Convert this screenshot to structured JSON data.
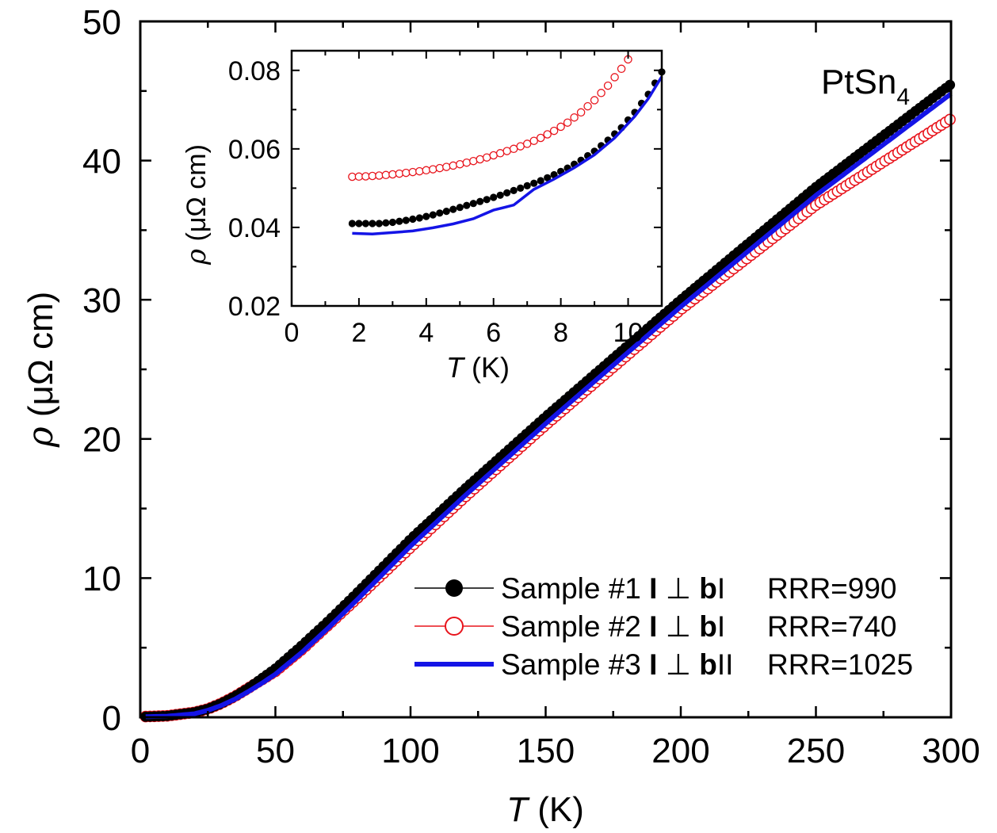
{
  "chart_data": [
    {
      "id": "main",
      "type": "line",
      "title": "",
      "annotation": {
        "base": "PtSn",
        "sub": "4"
      },
      "xlabel": {
        "symbol": "T",
        "unit": " (K)"
      },
      "ylabel": {
        "symbol": "ρ",
        "unit": " (μΩ cm)"
      },
      "xlim": [
        0,
        300
      ],
      "ylim": [
        0,
        50
      ],
      "xticks": [
        0,
        50,
        100,
        150,
        200,
        250,
        300
      ],
      "yticks": [
        0,
        10,
        20,
        30,
        40,
        50
      ],
      "xtick_labels": [
        "0",
        "50",
        "100",
        "150",
        "200",
        "250",
        "300"
      ],
      "ytick_labels": [
        "0",
        "10",
        "20",
        "30",
        "40",
        "50"
      ],
      "grid": false,
      "legend_position": "bottom-right",
      "series": [
        {
          "name": "Sample #1",
          "orientation": {
            "current": "I",
            "perp": "⊥",
            "axis": "b",
            "suffix": "I"
          },
          "rrr": "RRR=990",
          "marker": "filled-circle",
          "color": "#000000",
          "x": [
            2,
            10,
            20,
            25,
            30,
            35,
            40,
            45,
            50,
            60,
            70,
            80,
            100,
            120,
            150,
            200,
            250,
            300
          ],
          "y": [
            0.04,
            0.1,
            0.35,
            0.6,
            1.0,
            1.5,
            2.1,
            2.8,
            3.5,
            5.2,
            7.0,
            8.9,
            12.8,
            16.4,
            21.6,
            30.0,
            38.1,
            45.5
          ]
        },
        {
          "name": "Sample #2",
          "orientation": {
            "current": "I",
            "perp": "⊥",
            "axis": "b",
            "suffix": "I"
          },
          "rrr": "RRR=740",
          "marker": "open-circle",
          "color": "#e8141c",
          "x": [
            2,
            10,
            20,
            25,
            30,
            35,
            40,
            45,
            50,
            60,
            70,
            80,
            100,
            120,
            150,
            200,
            250,
            300
          ],
          "y": [
            0.05,
            0.1,
            0.35,
            0.6,
            1.0,
            1.5,
            2.1,
            2.7,
            3.3,
            4.9,
            6.7,
            8.5,
            12.2,
            15.8,
            21.0,
            29.3,
            36.8,
            43.0
          ]
        },
        {
          "name": "Sample #3",
          "orientation": {
            "current": "I",
            "perp": "⊥",
            "axis": "b",
            "suffix": "II"
          },
          "rrr": "RRR=1025",
          "marker": "line",
          "color": "#1414e6",
          "x": [
            2,
            10,
            20,
            25,
            30,
            35,
            40,
            45,
            50,
            60,
            70,
            80,
            100,
            120,
            150,
            200,
            250,
            300
          ],
          "y": [
            0.04,
            0.08,
            0.25,
            0.5,
            0.85,
            1.3,
            1.85,
            2.45,
            3.1,
            4.7,
            6.5,
            8.4,
            12.3,
            15.9,
            21.1,
            29.5,
            37.5,
            44.8
          ]
        }
      ]
    },
    {
      "id": "inset",
      "type": "line",
      "title": "",
      "xlabel": {
        "symbol": "T",
        "unit": " (K)"
      },
      "ylabel": {
        "symbol": "ρ",
        "unit": " (μΩ cm)"
      },
      "xlim": [
        0,
        11
      ],
      "ylim": [
        0.02,
        0.085
      ],
      "xticks": [
        0,
        2,
        4,
        6,
        8,
        10
      ],
      "yticks": [
        0.02,
        0.04,
        0.06,
        0.08
      ],
      "xtick_labels": [
        "0",
        "2",
        "4",
        "6",
        "8",
        "10"
      ],
      "ytick_labels": [
        "0.02",
        "0.04",
        "0.06",
        "0.08"
      ],
      "grid": false,
      "series": [
        {
          "name": "Sample #1",
          "marker": "filled-circle",
          "color": "#000000",
          "x": [
            1.8,
            2.2,
            2.6,
            3.0,
            3.4,
            3.8,
            4.2,
            4.6,
            5.0,
            5.4,
            5.8,
            6.2,
            6.6,
            7.0,
            7.4,
            7.8,
            8.2,
            8.6,
            9.0,
            9.4,
            9.8,
            10.2,
            10.6,
            11.0
          ],
          "y": [
            0.041,
            0.041,
            0.041,
            0.0413,
            0.0418,
            0.0424,
            0.0432,
            0.0441,
            0.0451,
            0.0461,
            0.0471,
            0.0482,
            0.0494,
            0.0506,
            0.0519,
            0.0534,
            0.0551,
            0.0571,
            0.0594,
            0.0622,
            0.0654,
            0.0693,
            0.0739,
            0.0796
          ]
        },
        {
          "name": "Sample #2",
          "marker": "open-circle",
          "color": "#e8141c",
          "x": [
            1.8,
            2.2,
            2.6,
            3.0,
            3.4,
            3.8,
            4.2,
            4.6,
            5.0,
            5.4,
            5.8,
            6.2,
            6.6,
            7.0,
            7.4,
            7.8,
            8.2,
            8.6,
            9.0,
            9.4,
            9.8,
            10.2
          ],
          "y": [
            0.0529,
            0.053,
            0.0532,
            0.0535,
            0.0539,
            0.0543,
            0.0548,
            0.0554,
            0.0561,
            0.0569,
            0.0578,
            0.0589,
            0.06,
            0.0613,
            0.0628,
            0.0646,
            0.0667,
            0.0693,
            0.0724,
            0.0761,
            0.0804,
            0.0852
          ]
        },
        {
          "name": "Sample #3",
          "marker": "line",
          "color": "#1414e6",
          "x": [
            1.8,
            2.4,
            3.0,
            3.6,
            4.2,
            4.8,
            5.4,
            6.0,
            6.6,
            7.2,
            7.8,
            8.4,
            9.0,
            9.6,
            10.2,
            10.6,
            11.0
          ],
          "y": [
            0.0385,
            0.0383,
            0.0387,
            0.0391,
            0.0399,
            0.0409,
            0.0422,
            0.0444,
            0.0457,
            0.0497,
            0.0523,
            0.0552,
            0.0585,
            0.0628,
            0.0683,
            0.0728,
            0.0784
          ]
        }
      ]
    }
  ]
}
